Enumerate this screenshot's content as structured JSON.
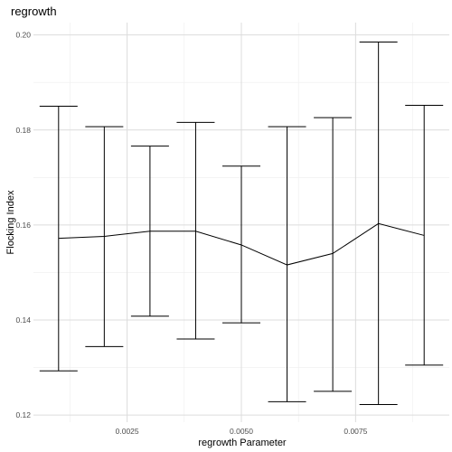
{
  "chart_data": {
    "type": "line",
    "title": "regrowth",
    "xlabel": "regrowth Parameter",
    "ylabel": "Flocking Index",
    "xlim": [
      0.00045,
      0.00955
    ],
    "ylim": [
      0.1185,
      0.2026
    ],
    "x_ticks": [
      0.0025,
      0.005,
      0.0075
    ],
    "x_tick_labels": [
      "0.0025",
      "0.0050",
      "0.0075"
    ],
    "y_ticks": [
      0.12,
      0.14,
      0.16,
      0.18,
      0.2
    ],
    "y_tick_labels": [
      "0.12",
      "0.14",
      "0.16",
      "0.18",
      "0.20"
    ],
    "grid": true,
    "points": [
      {
        "x": 0.001,
        "y": 0.1572,
        "ymin": 0.1293,
        "ymax": 0.185
      },
      {
        "x": 0.002,
        "y": 0.1576,
        "ymin": 0.1344,
        "ymax": 0.1807
      },
      {
        "x": 0.003,
        "y": 0.1587,
        "ymin": 0.1408,
        "ymax": 0.1766
      },
      {
        "x": 0.004,
        "y": 0.1587,
        "ymin": 0.136,
        "ymax": 0.1816
      },
      {
        "x": 0.005,
        "y": 0.1558,
        "ymin": 0.1394,
        "ymax": 0.1724
      },
      {
        "x": 0.006,
        "y": 0.1516,
        "ymin": 0.1228,
        "ymax": 0.1807
      },
      {
        "x": 0.007,
        "y": 0.154,
        "ymin": 0.125,
        "ymax": 0.1826
      },
      {
        "x": 0.008,
        "y": 0.1603,
        "ymin": 0.1222,
        "ymax": 0.1985
      },
      {
        "x": 0.009,
        "y": 0.1578,
        "ymin": 0.1305,
        "ymax": 0.1852
      }
    ]
  }
}
